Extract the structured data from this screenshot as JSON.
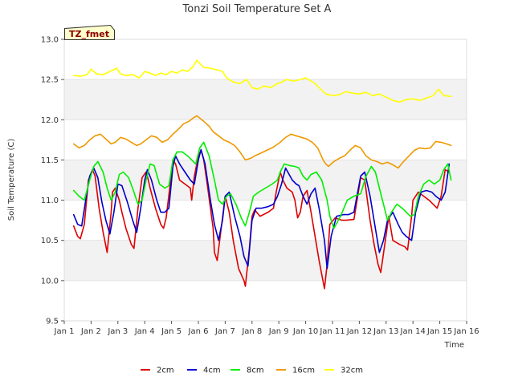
{
  "chart_data": {
    "type": "line",
    "title": "Tonzi Soil Temperature Set A",
    "xlabel": "Time",
    "ylabel": "Soil Temperature (C)",
    "badge": "TZ_fmet",
    "xlim": [
      1,
      16
    ],
    "ylim": [
      9.5,
      13.0
    ],
    "x_ticks": [
      {
        "value": 1,
        "label": "Jan 1"
      },
      {
        "value": 2,
        "label": "Jan 2"
      },
      {
        "value": 3,
        "label": "Jan 3"
      },
      {
        "value": 4,
        "label": "Jan 4"
      },
      {
        "value": 5,
        "label": "Jan 5"
      },
      {
        "value": 6,
        "label": "Jan 6"
      },
      {
        "value": 7,
        "label": "Jan 7"
      },
      {
        "value": 8,
        "label": "Jan 8"
      },
      {
        "value": 9,
        "label": "Jan 9"
      },
      {
        "value": 10,
        "label": "Jan 10"
      },
      {
        "value": 11,
        "label": "Jan 11"
      },
      {
        "value": 12,
        "label": "Jan 12"
      },
      {
        "value": 13,
        "label": "Jan 13"
      },
      {
        "value": 14,
        "label": "Jan 14"
      },
      {
        "value": 15,
        "label": "Jan 15"
      },
      {
        "value": 16,
        "label": "Jan 16"
      }
    ],
    "y_ticks": [
      {
        "value": 9.5,
        "label": "9.5"
      },
      {
        "value": 10.0,
        "label": "10.0"
      },
      {
        "value": 10.5,
        "label": "10.5"
      },
      {
        "value": 11.0,
        "label": "11.0"
      },
      {
        "value": 11.5,
        "label": "11.5"
      },
      {
        "value": 12.0,
        "label": "12.0"
      },
      {
        "value": 12.5,
        "label": "12.5"
      },
      {
        "value": 13.0,
        "label": "13.0"
      }
    ],
    "bands": [
      [
        10.0,
        10.5
      ],
      [
        11.0,
        11.5
      ],
      [
        12.0,
        12.5
      ]
    ],
    "legend_position": "bottom",
    "series": [
      {
        "name": "2cm",
        "color": "#dd0000",
        "x": [
          1.35,
          1.5,
          1.6,
          1.75,
          1.9,
          2.05,
          2.15,
          2.3,
          2.45,
          2.6,
          2.75,
          2.8,
          2.9,
          3.05,
          3.15,
          3.3,
          3.5,
          3.6,
          3.75,
          3.9,
          4.05,
          4.1,
          4.2,
          4.4,
          4.6,
          4.7,
          4.8,
          4.95,
          5.05,
          5.15,
          5.3,
          5.5,
          5.7,
          5.75,
          5.85,
          6.0,
          6.1,
          6.2,
          6.35,
          6.55,
          6.6,
          6.7,
          6.85,
          7.0,
          7.15,
          7.3,
          7.5,
          7.7,
          7.75,
          7.9,
          8.0,
          8.1,
          8.3,
          8.6,
          8.8,
          8.9,
          9.05,
          9.15,
          9.3,
          9.5,
          9.6,
          9.7,
          9.8,
          9.9,
          10.05,
          10.2,
          10.35,
          10.5,
          10.7,
          10.8,
          10.9,
          11.1,
          11.35,
          11.5,
          11.8,
          12.05,
          12.2,
          12.4,
          12.55,
          12.7,
          12.8,
          12.95,
          13.1,
          13.25,
          13.5,
          13.7,
          13.8,
          13.95,
          14.0,
          14.2,
          14.4,
          14.6,
          14.75,
          14.9,
          15.05,
          15.2,
          15.35
        ],
        "y": [
          10.68,
          10.55,
          10.52,
          10.7,
          11.25,
          11.38,
          11.3,
          10.9,
          10.6,
          10.35,
          10.85,
          11.1,
          11.15,
          11.0,
          10.85,
          10.65,
          10.45,
          10.4,
          10.9,
          11.28,
          11.35,
          11.3,
          11.15,
          10.9,
          10.7,
          10.65,
          10.78,
          11.2,
          11.5,
          11.45,
          11.25,
          11.2,
          11.15,
          11.0,
          11.3,
          11.55,
          11.62,
          11.5,
          11.15,
          10.65,
          10.35,
          10.25,
          10.65,
          11.05,
          10.85,
          10.5,
          10.15,
          10.0,
          9.93,
          10.4,
          10.8,
          10.88,
          10.8,
          10.85,
          10.9,
          11.1,
          11.35,
          11.25,
          11.15,
          11.1,
          11.0,
          10.78,
          10.85,
          11.05,
          11.12,
          10.85,
          10.55,
          10.25,
          9.9,
          10.2,
          10.7,
          10.78,
          10.75,
          10.75,
          10.76,
          11.28,
          11.25,
          10.75,
          10.45,
          10.2,
          10.1,
          10.45,
          10.8,
          10.5,
          10.45,
          10.42,
          10.38,
          10.8,
          11.0,
          11.1,
          11.05,
          11.0,
          10.95,
          10.9,
          11.05,
          11.38,
          11.35
        ]
      },
      {
        "name": "4cm",
        "color": "#0000cc",
        "x": [
          1.35,
          1.5,
          1.65,
          1.8,
          1.95,
          2.1,
          2.25,
          2.4,
          2.55,
          2.7,
          2.85,
          3.0,
          3.15,
          3.35,
          3.55,
          3.7,
          3.85,
          4.0,
          4.1,
          4.25,
          4.45,
          4.6,
          4.75,
          4.9,
          5.05,
          5.15,
          5.3,
          5.5,
          5.7,
          5.85,
          6.0,
          6.1,
          6.25,
          6.45,
          6.6,
          6.75,
          6.9,
          7.0,
          7.15,
          7.35,
          7.55,
          7.7,
          7.85,
          8.0,
          8.15,
          8.35,
          8.6,
          8.8,
          8.95,
          9.1,
          9.25,
          9.5,
          9.65,
          9.75,
          9.9,
          10.05,
          10.2,
          10.35,
          10.5,
          10.7,
          10.8,
          10.95,
          11.15,
          11.4,
          11.6,
          11.8,
          12.05,
          12.2,
          12.4,
          12.6,
          12.75,
          12.9,
          13.05,
          13.25,
          13.45,
          13.6,
          13.75,
          13.95,
          14.1,
          14.3,
          14.5,
          14.7,
          14.85,
          15.05,
          15.2,
          15.35
        ],
        "y": [
          10.82,
          10.7,
          10.68,
          11.0,
          11.3,
          11.4,
          11.28,
          10.98,
          10.75,
          10.58,
          10.85,
          11.2,
          11.18,
          10.98,
          10.75,
          10.6,
          10.9,
          11.25,
          11.38,
          11.25,
          11.0,
          10.85,
          10.85,
          10.9,
          11.42,
          11.55,
          11.45,
          11.35,
          11.25,
          11.2,
          11.5,
          11.63,
          11.45,
          11.0,
          10.7,
          10.5,
          10.75,
          11.05,
          11.1,
          10.8,
          10.55,
          10.3,
          10.18,
          10.75,
          10.9,
          10.9,
          10.92,
          10.95,
          11.05,
          11.2,
          11.4,
          11.25,
          11.2,
          11.18,
          11.05,
          10.95,
          11.08,
          11.15,
          10.9,
          10.5,
          10.15,
          10.55,
          10.8,
          10.82,
          10.82,
          10.85,
          11.3,
          11.35,
          11.05,
          10.65,
          10.35,
          10.5,
          10.75,
          10.85,
          10.7,
          10.6,
          10.55,
          10.5,
          10.85,
          11.1,
          11.12,
          11.1,
          11.05,
          11.0,
          11.1,
          11.45
        ]
      },
      {
        "name": "8cm",
        "color": "#00ee00",
        "x": [
          1.35,
          1.55,
          1.75,
          1.95,
          2.1,
          2.25,
          2.45,
          2.6,
          2.75,
          2.9,
          3.05,
          3.2,
          3.4,
          3.6,
          3.75,
          3.9,
          4.05,
          4.2,
          4.35,
          4.55,
          4.75,
          4.9,
          5.05,
          5.2,
          5.4,
          5.6,
          5.75,
          5.9,
          6.05,
          6.2,
          6.4,
          6.6,
          6.75,
          6.9,
          7.05,
          7.2,
          7.4,
          7.6,
          7.75,
          7.9,
          8.05,
          8.25,
          8.5,
          8.75,
          8.95,
          9.05,
          9.2,
          9.4,
          9.6,
          9.75,
          9.9,
          10.05,
          10.2,
          10.4,
          10.6,
          10.8,
          10.9,
          11.05,
          11.3,
          11.55,
          11.8,
          12.05,
          12.25,
          12.45,
          12.6,
          12.75,
          12.9,
          13.05,
          13.2,
          13.4,
          13.6,
          13.75,
          13.9,
          14.05,
          14.2,
          14.4,
          14.6,
          14.8,
          15.0,
          15.15,
          15.3,
          15.42
        ],
        "y": [
          11.12,
          11.05,
          11.0,
          11.25,
          11.42,
          11.48,
          11.35,
          11.15,
          11.0,
          11.1,
          11.32,
          11.35,
          11.28,
          11.1,
          10.95,
          11.0,
          11.25,
          11.45,
          11.43,
          11.2,
          11.15,
          11.18,
          11.5,
          11.6,
          11.6,
          11.55,
          11.5,
          11.45,
          11.65,
          11.72,
          11.55,
          11.25,
          11.0,
          10.95,
          11.05,
          11.08,
          10.95,
          10.78,
          10.68,
          10.85,
          11.05,
          11.1,
          11.15,
          11.2,
          11.25,
          11.35,
          11.45,
          11.43,
          11.42,
          11.4,
          11.3,
          11.25,
          11.32,
          11.35,
          11.25,
          11.0,
          10.8,
          10.65,
          10.8,
          11.0,
          11.05,
          11.08,
          11.3,
          11.42,
          11.35,
          11.15,
          10.95,
          10.75,
          10.85,
          10.95,
          10.9,
          10.85,
          10.8,
          10.82,
          11.05,
          11.2,
          11.25,
          11.2,
          11.25,
          11.38,
          11.45,
          11.25
        ]
      },
      {
        "name": "16cm",
        "color": "#ee9900",
        "x": [
          1.35,
          1.55,
          1.75,
          1.95,
          2.15,
          2.35,
          2.55,
          2.75,
          2.9,
          3.1,
          3.3,
          3.5,
          3.7,
          3.85,
          4.05,
          4.25,
          4.45,
          4.65,
          4.85,
          5.05,
          5.25,
          5.45,
          5.65,
          5.8,
          5.95,
          6.05,
          6.2,
          6.4,
          6.55,
          6.75,
          6.95,
          7.15,
          7.35,
          7.55,
          7.75,
          7.95,
          8.1,
          8.3,
          8.55,
          8.8,
          9.05,
          9.25,
          9.45,
          9.65,
          9.85,
          10.05,
          10.25,
          10.45,
          10.65,
          10.75,
          10.85,
          11.05,
          11.25,
          11.45,
          11.65,
          11.85,
          12.05,
          12.25,
          12.45,
          12.65,
          12.85,
          13.05,
          13.25,
          13.45,
          13.65,
          13.85,
          14.05,
          14.25,
          14.45,
          14.65,
          14.85,
          15.05,
          15.25,
          15.42
        ],
        "y": [
          11.7,
          11.65,
          11.68,
          11.75,
          11.8,
          11.82,
          11.76,
          11.7,
          11.72,
          11.78,
          11.76,
          11.72,
          11.68,
          11.7,
          11.75,
          11.8,
          11.78,
          11.72,
          11.75,
          11.82,
          11.88,
          11.95,
          11.98,
          12.02,
          12.05,
          12.02,
          11.98,
          11.92,
          11.85,
          11.8,
          11.75,
          11.72,
          11.68,
          11.6,
          11.5,
          11.52,
          11.55,
          11.58,
          11.62,
          11.66,
          11.72,
          11.78,
          11.82,
          11.8,
          11.78,
          11.76,
          11.72,
          11.65,
          11.5,
          11.45,
          11.42,
          11.48,
          11.52,
          11.55,
          11.62,
          11.68,
          11.65,
          11.55,
          11.5,
          11.48,
          11.45,
          11.47,
          11.44,
          11.4,
          11.48,
          11.55,
          11.62,
          11.65,
          11.64,
          11.65,
          11.73,
          11.72,
          11.7,
          11.68
        ]
      },
      {
        "name": "32cm",
        "color": "#ffff00",
        "x": [
          1.35,
          1.6,
          1.85,
          2.0,
          2.2,
          2.45,
          2.7,
          2.95,
          3.1,
          3.3,
          3.55,
          3.8,
          4.0,
          4.2,
          4.4,
          4.6,
          4.8,
          5.0,
          5.2,
          5.4,
          5.6,
          5.8,
          5.95,
          6.05,
          6.2,
          6.45,
          6.7,
          6.9,
          7.05,
          7.3,
          7.55,
          7.8,
          8.0,
          8.2,
          8.45,
          8.7,
          8.95,
          9.05,
          9.3,
          9.55,
          9.8,
          10.0,
          10.2,
          10.35,
          10.5,
          10.75,
          11.0,
          11.25,
          11.5,
          11.75,
          12.0,
          12.25,
          12.5,
          12.75,
          13.0,
          13.25,
          13.5,
          13.75,
          14.0,
          14.25,
          14.5,
          14.75,
          14.95,
          15.15,
          15.42
        ],
        "y": [
          12.55,
          12.54,
          12.56,
          12.63,
          12.57,
          12.56,
          12.6,
          12.64,
          12.57,
          12.55,
          12.56,
          12.52,
          12.6,
          12.58,
          12.55,
          12.58,
          12.56,
          12.6,
          12.58,
          12.62,
          12.6,
          12.66,
          12.74,
          12.7,
          12.65,
          12.64,
          12.62,
          12.6,
          12.52,
          12.47,
          12.45,
          12.5,
          12.4,
          12.38,
          12.42,
          12.4,
          12.45,
          12.46,
          12.5,
          12.48,
          12.5,
          12.52,
          12.48,
          12.45,
          12.4,
          12.32,
          12.3,
          12.31,
          12.35,
          12.33,
          12.32,
          12.34,
          12.3,
          12.32,
          12.28,
          12.24,
          12.22,
          12.25,
          12.26,
          12.24,
          12.27,
          12.3,
          12.38,
          12.3,
          12.29
        ]
      }
    ]
  }
}
